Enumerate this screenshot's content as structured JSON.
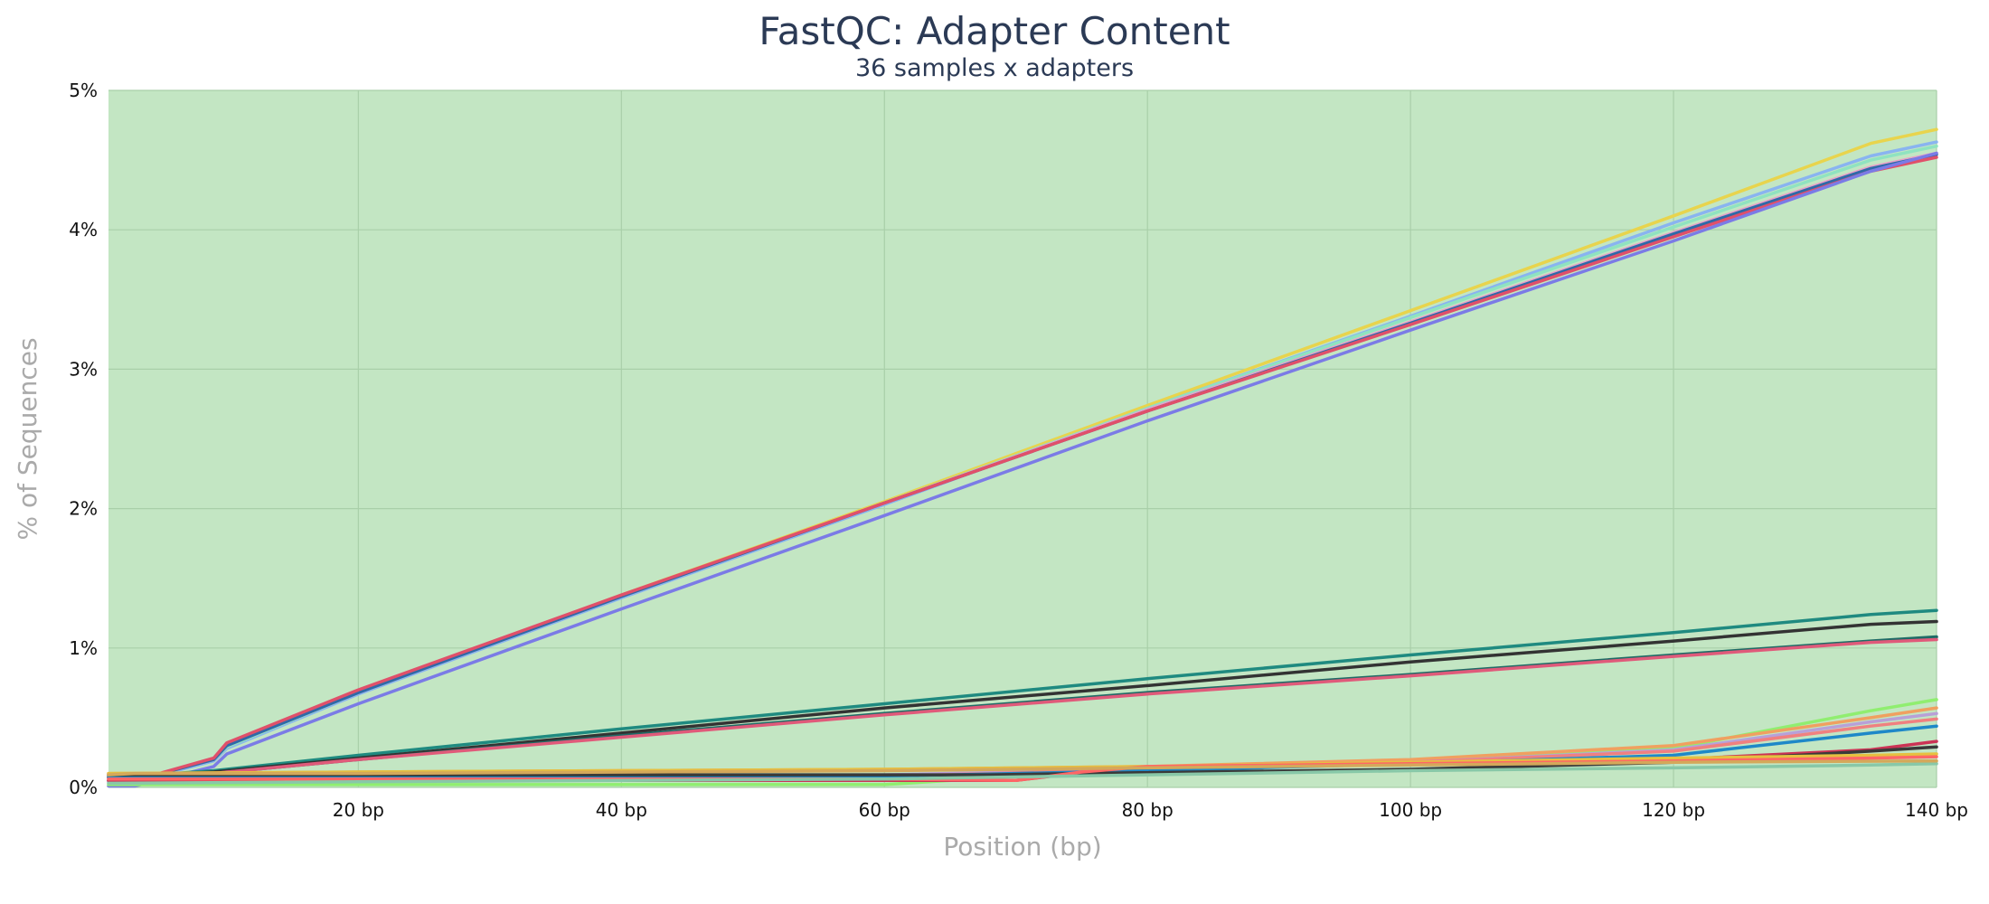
{
  "chart_data": {
    "type": "line",
    "title": "FastQC: Adapter Content",
    "subtitle": "36 samples x adapters",
    "xlabel": "Position (bp)",
    "ylabel": "% of Sequences",
    "xlim": [
      1,
      140
    ],
    "ylim": [
      0,
      5
    ],
    "x_ticks": [
      20,
      40,
      60,
      80,
      100,
      120,
      140
    ],
    "x_tick_labels": [
      "20 bp",
      "40 bp",
      "60 bp",
      "80 bp",
      "100 bp",
      "120 bp",
      "140 bp"
    ],
    "y_ticks": [
      0,
      1,
      2,
      3,
      4,
      5
    ],
    "y_tick_labels": [
      "0%",
      "1%",
      "2%",
      "3%",
      "4%",
      "5%"
    ],
    "grid": true,
    "background_color": "#c3e6c3",
    "series": [
      {
        "color": "#e8d44d",
        "points": [
          [
            1,
            0.05
          ],
          [
            3,
            0.05
          ],
          [
            9,
            0.2
          ],
          [
            10,
            0.3
          ],
          [
            20,
            0.69
          ],
          [
            40,
            1.38
          ],
          [
            60,
            2.05
          ],
          [
            80,
            2.74
          ],
          [
            100,
            3.42
          ],
          [
            120,
            4.1
          ],
          [
            135,
            4.62
          ],
          [
            140,
            4.72
          ]
        ]
      },
      {
        "color": "#89b4f0",
        "points": [
          [
            1,
            0.04
          ],
          [
            3,
            0.04
          ],
          [
            9,
            0.19
          ],
          [
            10,
            0.28
          ],
          [
            20,
            0.67
          ],
          [
            40,
            1.36
          ],
          [
            60,
            2.03
          ],
          [
            80,
            2.72
          ],
          [
            100,
            3.38
          ],
          [
            120,
            4.05
          ],
          [
            135,
            4.53
          ],
          [
            140,
            4.63
          ]
        ]
      },
      {
        "color": "#8fe3c0",
        "points": [
          [
            1,
            0.05
          ],
          [
            3,
            0.05
          ],
          [
            9,
            0.2
          ],
          [
            10,
            0.29
          ],
          [
            20,
            0.68
          ],
          [
            40,
            1.37
          ],
          [
            60,
            2.04
          ],
          [
            80,
            2.72
          ],
          [
            100,
            3.37
          ],
          [
            120,
            4.02
          ],
          [
            135,
            4.5
          ],
          [
            140,
            4.6
          ]
        ]
      },
      {
        "color": "#e8a0c8",
        "points": [
          [
            1,
            0.05
          ],
          [
            3,
            0.05
          ],
          [
            9,
            0.2
          ],
          [
            10,
            0.3
          ],
          [
            20,
            0.68
          ],
          [
            40,
            1.37
          ],
          [
            60,
            2.04
          ],
          [
            80,
            2.71
          ],
          [
            100,
            3.34
          ],
          [
            120,
            3.98
          ],
          [
            135,
            4.45
          ],
          [
            140,
            4.55
          ]
        ]
      },
      {
        "color": "#2e6aa8",
        "points": [
          [
            1,
            0.05
          ],
          [
            3,
            0.05
          ],
          [
            9,
            0.2
          ],
          [
            10,
            0.3
          ],
          [
            20,
            0.68
          ],
          [
            40,
            1.37
          ],
          [
            60,
            2.04
          ],
          [
            80,
            2.7
          ],
          [
            100,
            3.33
          ],
          [
            120,
            3.97
          ],
          [
            135,
            4.44
          ],
          [
            140,
            4.54
          ]
        ]
      },
      {
        "color": "#e0506a",
        "points": [
          [
            1,
            0.05
          ],
          [
            3,
            0.05
          ],
          [
            9,
            0.21
          ],
          [
            10,
            0.32
          ],
          [
            20,
            0.7
          ],
          [
            40,
            1.38
          ],
          [
            60,
            2.04
          ],
          [
            80,
            2.7
          ],
          [
            100,
            3.32
          ],
          [
            120,
            3.95
          ],
          [
            135,
            4.42
          ],
          [
            140,
            4.52
          ]
        ]
      },
      {
        "color": "#7b7be6",
        "points": [
          [
            1,
            0.01
          ],
          [
            3,
            0.01
          ],
          [
            9,
            0.15
          ],
          [
            10,
            0.24
          ],
          [
            20,
            0.6
          ],
          [
            40,
            1.28
          ],
          [
            60,
            1.95
          ],
          [
            80,
            2.63
          ],
          [
            100,
            3.28
          ],
          [
            120,
            3.92
          ],
          [
            135,
            4.42
          ],
          [
            140,
            4.55
          ]
        ]
      },
      {
        "color": "#1f8a80",
        "points": [
          [
            1,
            0.08
          ],
          [
            3,
            0.08
          ],
          [
            9,
            0.12
          ],
          [
            10,
            0.13
          ],
          [
            20,
            0.23
          ],
          [
            40,
            0.42
          ],
          [
            60,
            0.6
          ],
          [
            80,
            0.78
          ],
          [
            100,
            0.95
          ],
          [
            120,
            1.11
          ],
          [
            135,
            1.24
          ],
          [
            140,
            1.27
          ]
        ]
      },
      {
        "color": "#333333",
        "points": [
          [
            1,
            0.08
          ],
          [
            3,
            0.08
          ],
          [
            9,
            0.11
          ],
          [
            10,
            0.12
          ],
          [
            20,
            0.21
          ],
          [
            40,
            0.39
          ],
          [
            60,
            0.57
          ],
          [
            80,
            0.73
          ],
          [
            100,
            0.9
          ],
          [
            120,
            1.05
          ],
          [
            135,
            1.17
          ],
          [
            140,
            1.19
          ]
        ]
      },
      {
        "color": "#1f6b66",
        "points": [
          [
            1,
            0.07
          ],
          [
            3,
            0.07
          ],
          [
            9,
            0.1
          ],
          [
            10,
            0.11
          ],
          [
            20,
            0.2
          ],
          [
            40,
            0.37
          ],
          [
            60,
            0.53
          ],
          [
            80,
            0.68
          ],
          [
            100,
            0.81
          ],
          [
            120,
            0.95
          ],
          [
            135,
            1.05
          ],
          [
            140,
            1.08
          ]
        ]
      },
      {
        "color": "#e05a7a",
        "points": [
          [
            1,
            0.07
          ],
          [
            3,
            0.07
          ],
          [
            9,
            0.1
          ],
          [
            10,
            0.11
          ],
          [
            20,
            0.2
          ],
          [
            40,
            0.36
          ],
          [
            60,
            0.52
          ],
          [
            80,
            0.67
          ],
          [
            100,
            0.8
          ],
          [
            120,
            0.94
          ],
          [
            135,
            1.04
          ],
          [
            140,
            1.06
          ]
        ]
      },
      {
        "color": "#90ee70",
        "points": [
          [
            1,
            0.02
          ],
          [
            60,
            0.02
          ],
          [
            70,
            0.08
          ],
          [
            80,
            0.14
          ],
          [
            100,
            0.18
          ],
          [
            120,
            0.28
          ],
          [
            135,
            0.55
          ],
          [
            140,
            0.63
          ]
        ]
      },
      {
        "color": "#f0a060",
        "points": [
          [
            1,
            0.1
          ],
          [
            3,
            0.1
          ],
          [
            20,
            0.11
          ],
          [
            40,
            0.12
          ],
          [
            60,
            0.13
          ],
          [
            80,
            0.15
          ],
          [
            100,
            0.2
          ],
          [
            120,
            0.3
          ],
          [
            135,
            0.5
          ],
          [
            140,
            0.57
          ]
        ]
      },
      {
        "color": "#b8a0d8",
        "points": [
          [
            1,
            0.08
          ],
          [
            20,
            0.08
          ],
          [
            60,
            0.09
          ],
          [
            80,
            0.13
          ],
          [
            100,
            0.18
          ],
          [
            120,
            0.27
          ],
          [
            135,
            0.47
          ],
          [
            140,
            0.53
          ]
        ]
      },
      {
        "color": "#f08080",
        "points": [
          [
            1,
            0.07
          ],
          [
            20,
            0.07
          ],
          [
            60,
            0.08
          ],
          [
            80,
            0.13
          ],
          [
            100,
            0.18
          ],
          [
            120,
            0.26
          ],
          [
            135,
            0.44
          ],
          [
            140,
            0.49
          ]
        ]
      },
      {
        "color": "#1e88c8",
        "points": [
          [
            1,
            0.07
          ],
          [
            20,
            0.07
          ],
          [
            60,
            0.08
          ],
          [
            80,
            0.12
          ],
          [
            100,
            0.17
          ],
          [
            120,
            0.23
          ],
          [
            135,
            0.39
          ],
          [
            140,
            0.44
          ]
        ]
      },
      {
        "color": "#cc3355",
        "points": [
          [
            1,
            0.05
          ],
          [
            20,
            0.05
          ],
          [
            60,
            0.05
          ],
          [
            70,
            0.05
          ],
          [
            78,
            0.14
          ],
          [
            100,
            0.17
          ],
          [
            120,
            0.2
          ],
          [
            135,
            0.27
          ],
          [
            140,
            0.33
          ]
        ]
      },
      {
        "color": "#3a3a3a",
        "points": [
          [
            1,
            0.09
          ],
          [
            20,
            0.09
          ],
          [
            60,
            0.09
          ],
          [
            68,
            0.09
          ],
          [
            75,
            0.1
          ],
          [
            100,
            0.13
          ],
          [
            120,
            0.18
          ],
          [
            135,
            0.26
          ],
          [
            140,
            0.29
          ]
        ]
      },
      {
        "color": "#e6c040",
        "points": [
          [
            1,
            0.1
          ],
          [
            20,
            0.11
          ],
          [
            40,
            0.12
          ],
          [
            60,
            0.13
          ],
          [
            80,
            0.15
          ],
          [
            100,
            0.18
          ],
          [
            120,
            0.21
          ],
          [
            135,
            0.23
          ],
          [
            140,
            0.24
          ]
        ]
      },
      {
        "color": "#ff6666",
        "points": [
          [
            1,
            0.06
          ],
          [
            20,
            0.06
          ],
          [
            40,
            0.06
          ],
          [
            60,
            0.06
          ],
          [
            70,
            0.05
          ],
          [
            75,
            0.11
          ],
          [
            80,
            0.15
          ],
          [
            100,
            0.17
          ],
          [
            120,
            0.19
          ],
          [
            135,
            0.21
          ],
          [
            140,
            0.22
          ]
        ]
      },
      {
        "color": "#88c8a8",
        "points": [
          [
            1,
            0.03
          ],
          [
            20,
            0.04
          ],
          [
            60,
            0.06
          ],
          [
            80,
            0.09
          ],
          [
            100,
            0.12
          ],
          [
            120,
            0.14
          ],
          [
            135,
            0.16
          ],
          [
            140,
            0.17
          ]
        ]
      },
      {
        "color": "#d4a85a",
        "points": [
          [
            1,
            0.09
          ],
          [
            3,
            0.1
          ],
          [
            20,
            0.1
          ],
          [
            60,
            0.12
          ],
          [
            80,
            0.14
          ],
          [
            100,
            0.16
          ],
          [
            120,
            0.18
          ],
          [
            140,
            0.19
          ]
        ]
      }
    ]
  }
}
